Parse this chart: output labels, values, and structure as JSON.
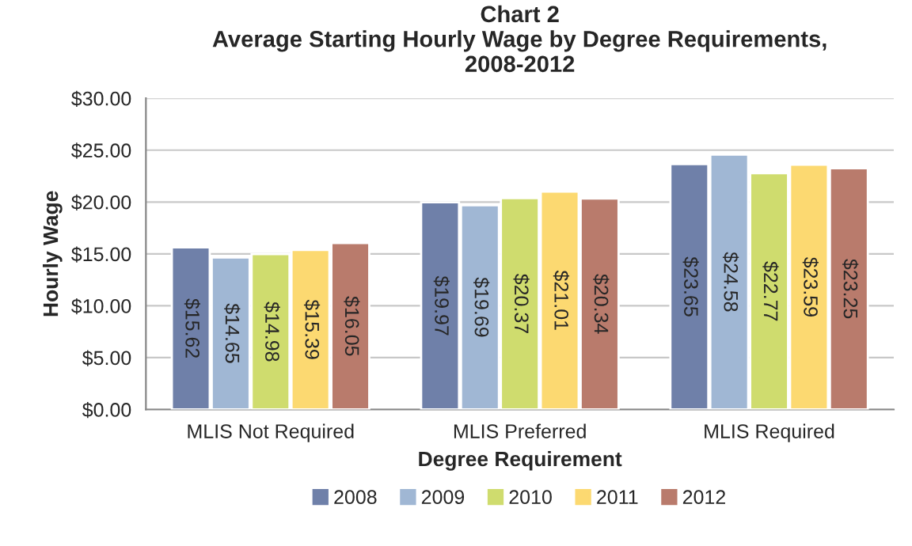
{
  "chart_data": {
    "type": "bar",
    "title": "Chart 2\nAverage Starting Hourly Wage by Degree Requirements,\n2008-2012",
    "xlabel": "Degree Requirement",
    "ylabel": "Hourly Wage",
    "categories": [
      "MLIS Not Required",
      "MLIS Preferred",
      "MLIS Required"
    ],
    "series": [
      {
        "name": "2008",
        "color": "#6f80a9",
        "values": [
          15.62,
          19.97,
          23.65
        ],
        "value_labels": [
          "$15.62",
          "$19.97",
          "$23.65"
        ]
      },
      {
        "name": "2009",
        "color": "#a0b7d4",
        "values": [
          14.65,
          19.69,
          24.58
        ],
        "value_labels": [
          "$14.65",
          "$19.69",
          "$24.58"
        ]
      },
      {
        "name": "2010",
        "color": "#cfdc6e",
        "values": [
          14.98,
          20.37,
          22.77
        ],
        "value_labels": [
          "$14.98",
          "$20.37",
          "$22.77"
        ]
      },
      {
        "name": "2011",
        "color": "#fcd971",
        "values": [
          15.39,
          21.01,
          23.59
        ],
        "value_labels": [
          "$15.39",
          "$21.01",
          "$23.59"
        ]
      },
      {
        "name": "2012",
        "color": "#b97b6c",
        "values": [
          16.05,
          20.34,
          23.25
        ],
        "value_labels": [
          "$16.05",
          "$20.34",
          "$23.25"
        ]
      }
    ],
    "ylim": [
      0,
      30
    ],
    "yticks": [
      {
        "value": 0,
        "label": "$0.00"
      },
      {
        "value": 5,
        "label": "$5.00"
      },
      {
        "value": 10,
        "label": "$10.00"
      },
      {
        "value": 15,
        "label": "$15.00"
      },
      {
        "value": 20,
        "label": "$20.00"
      },
      {
        "value": 25,
        "label": "$25.00"
      },
      {
        "value": 30,
        "label": "$30.00"
      }
    ],
    "grid": "y",
    "legend": "bottom"
  }
}
